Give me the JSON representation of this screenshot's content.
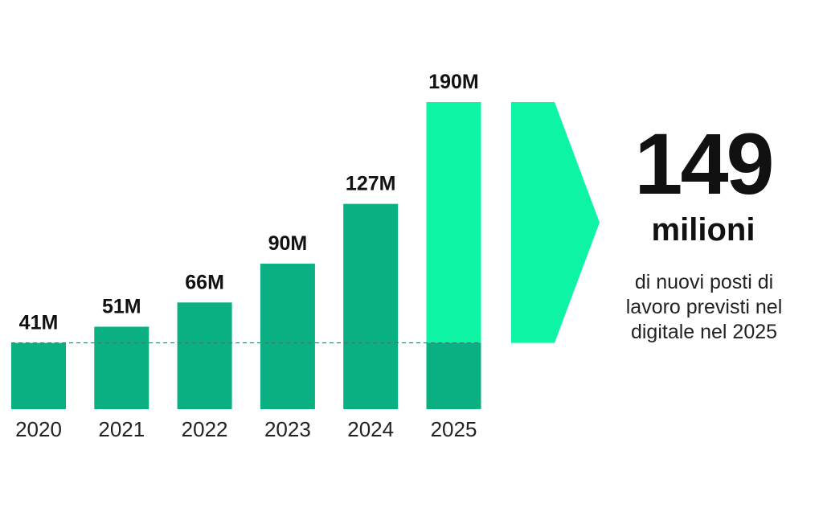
{
  "chart_data": {
    "type": "bar",
    "categories": [
      "2020",
      "2021",
      "2022",
      "2023",
      "2024",
      "2025"
    ],
    "values": [
      41,
      51,
      66,
      90,
      127,
      190
    ],
    "value_labels": [
      "41M",
      "51M",
      "66M",
      "90M",
      "127M",
      "190M"
    ],
    "baseline_value": 41,
    "highlight": {
      "category": "2025",
      "increase_from_baseline": 149
    },
    "ylim": [
      0,
      190
    ],
    "grid": false,
    "legend": "none",
    "xlabel": "",
    "ylabel": ""
  },
  "callout": {
    "number": "149",
    "unit": "milioni",
    "caption_lines": [
      "di nuovi posti di",
      "lavoro previsti nel",
      "digitale nel 2025"
    ]
  },
  "colors": {
    "bar": "#0aaf82",
    "highlight": "#0df5a4",
    "baseline_line": "#2f7f73",
    "text": "#111111"
  }
}
